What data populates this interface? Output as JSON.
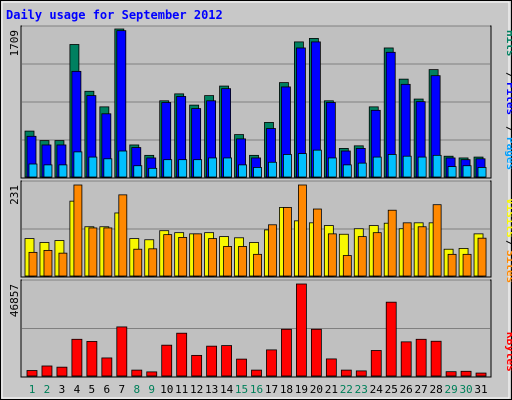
{
  "chart_data": [
    {
      "type": "bar",
      "title": "Daily usage for September 2012",
      "ylim": [
        0,
        1709
      ],
      "ytick_label": "1709",
      "legend": [
        "Pages",
        "Files",
        "Hits"
      ],
      "legend_colors": [
        "#00a0ff",
        "#0000ff",
        "#008060"
      ],
      "categories": [
        "1",
        "2",
        "3",
        "4",
        "5",
        "6",
        "7",
        "8",
        "9",
        "10",
        "11",
        "12",
        "13",
        "14",
        "15",
        "16",
        "17",
        "18",
        "19",
        "20",
        "21",
        "22",
        "23",
        "24",
        "25",
        "26",
        "27",
        "28",
        "29",
        "30",
        "31"
      ],
      "weekend_days": [
        "1",
        "2",
        "8",
        "9",
        "15",
        "16",
        "22",
        "23",
        "29",
        "30"
      ],
      "series": [
        {
          "name": "Hits",
          "values": [
            530,
            420,
            420,
            1530,
            990,
            810,
            1709,
            370,
            250,
            880,
            960,
            830,
            940,
            1050,
            490,
            250,
            630,
            1090,
            1560,
            1600,
            880,
            330,
            360,
            810,
            1490,
            1130,
            900,
            1240,
            240,
            220,
            230
          ]
        },
        {
          "name": "Files",
          "values": [
            470,
            370,
            370,
            1220,
            940,
            730,
            1690,
            340,
            220,
            860,
            930,
            790,
            880,
            1020,
            440,
            220,
            560,
            1040,
            1490,
            1560,
            860,
            300,
            330,
            770,
            1440,
            1070,
            870,
            1170,
            220,
            200,
            210
          ]
        },
        {
          "name": "Pages",
          "values": [
            150,
            140,
            140,
            290,
            230,
            210,
            300,
            130,
            100,
            200,
            200,
            200,
            220,
            220,
            140,
            110,
            170,
            260,
            270,
            310,
            220,
            140,
            160,
            230,
            260,
            240,
            230,
            250,
            120,
            130,
            110
          ]
        }
      ]
    },
    {
      "type": "bar",
      "ylim": [
        0,
        231
      ],
      "ytick_label": "231",
      "legend": [
        "Sites",
        "Visits"
      ],
      "legend_colors": [
        "#ff8800",
        "#f8f800"
      ],
      "categories": [
        "1",
        "2",
        "3",
        "4",
        "5",
        "6",
        "7",
        "8",
        "9",
        "10",
        "11",
        "12",
        "13",
        "14",
        "15",
        "16",
        "17",
        "18",
        "19",
        "20",
        "21",
        "22",
        "23",
        "24",
        "25",
        "26",
        "27",
        "28",
        "29",
        "30",
        "31"
      ],
      "series": [
        {
          "name": "Visits",
          "values": [
            95,
            85,
            90,
            190,
            125,
            125,
            160,
            95,
            92,
            115,
            110,
            107,
            110,
            100,
            97,
            85,
            117,
            174,
            140,
            135,
            128,
            106,
            120,
            128,
            134,
            120,
            135,
            135,
            68,
            70,
            107
          ]
        },
        {
          "name": "Sites",
          "values": [
            60,
            65,
            58,
            231,
            122,
            122,
            206,
            68,
            69,
            105,
            98,
            107,
            95,
            75,
            75,
            55,
            130,
            174,
            231,
            170,
            107,
            52,
            100,
            110,
            167,
            135,
            125,
            181,
            55,
            55,
            96
          ]
        }
      ]
    },
    {
      "type": "bar",
      "ylim": [
        0,
        46857
      ],
      "ytick_label": "46857",
      "legend": [
        "KBytes"
      ],
      "legend_colors": [
        "#ff0000"
      ],
      "categories": [
        "1",
        "2",
        "3",
        "4",
        "5",
        "6",
        "7",
        "8",
        "9",
        "10",
        "11",
        "12",
        "13",
        "14",
        "15",
        "16",
        "17",
        "18",
        "19",
        "20",
        "21",
        "22",
        "23",
        "24",
        "25",
        "26",
        "27",
        "28",
        "29",
        "30",
        "31"
      ],
      "series": [
        {
          "name": "KBytes",
          "values": [
            2800,
            5100,
            4500,
            18700,
            17600,
            9200,
            25000,
            3000,
            2100,
            15700,
            21800,
            10500,
            15200,
            15500,
            8600,
            3000,
            13300,
            23800,
            46857,
            23800,
            8700,
            3000,
            2600,
            13000,
            37600,
            17400,
            18700,
            17700,
            2200,
            2400,
            1500
          ]
        }
      ]
    }
  ]
}
